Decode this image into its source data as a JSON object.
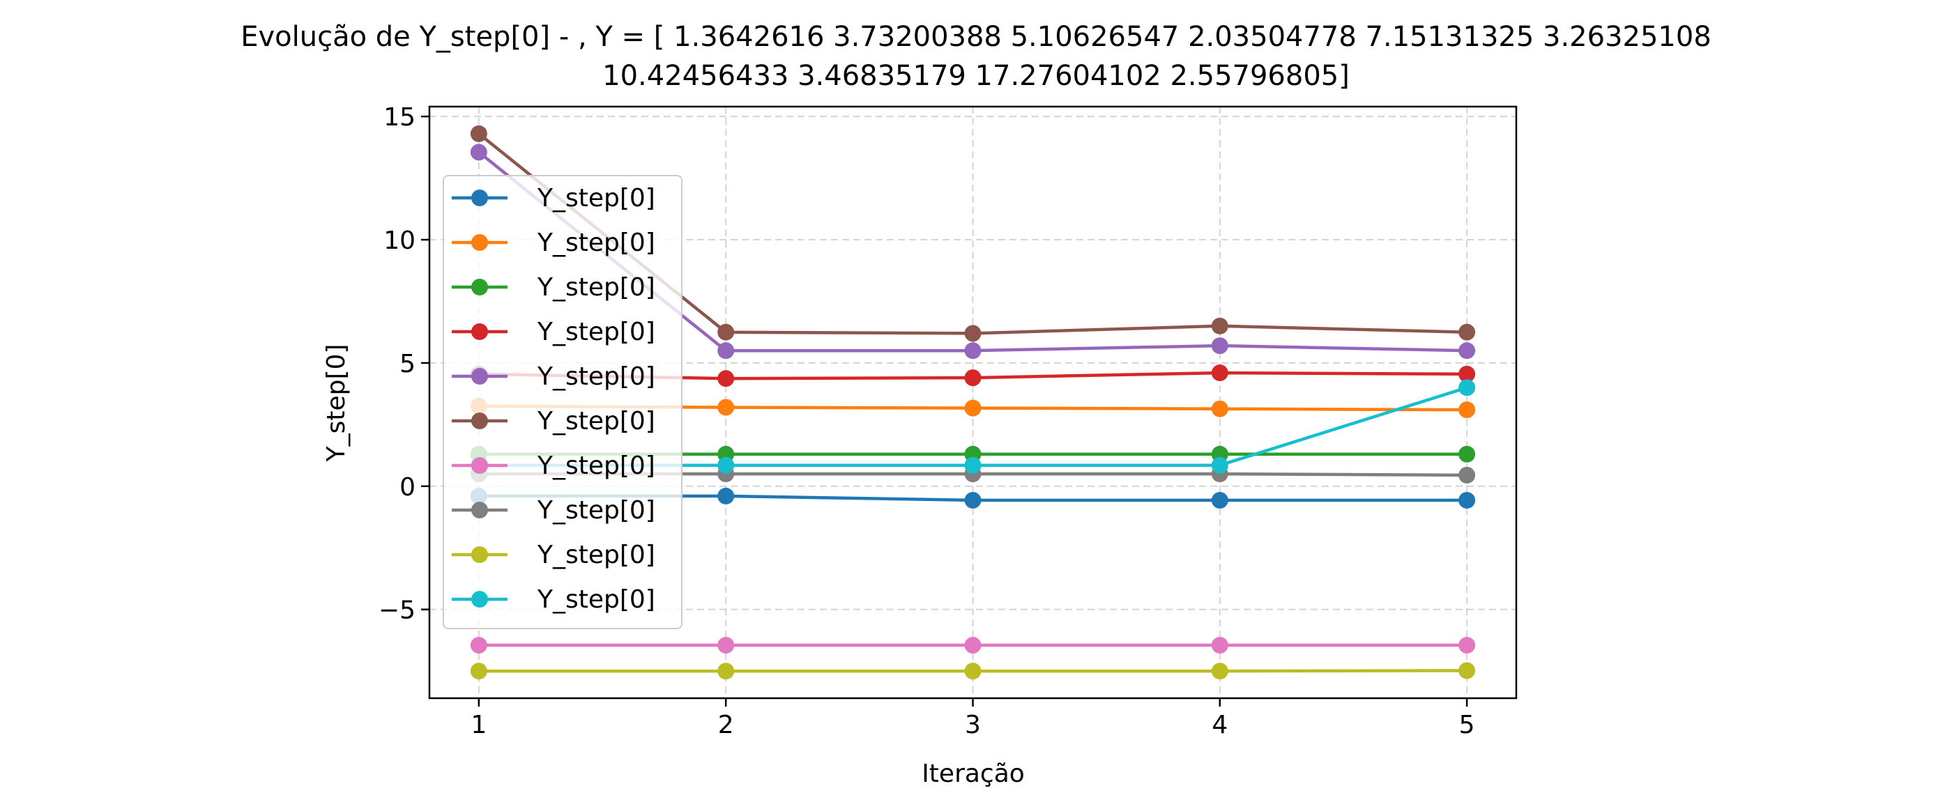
{
  "chart_data": {
    "type": "line",
    "title_line1": "Evolução de Y_step[0] - , Y = [ 1.3642616   3.73200388  5.10626547  2.03504778  7.15131325  3.26325108",
    "title_line2": "10.42456433  3.46835179 17.27604102  2.55796805]",
    "xlabel": "Iteração",
    "ylabel": "Y_step[0]",
    "xlim": [
      0.8,
      5.2
    ],
    "ylim": [
      -8.6,
      15.4
    ],
    "xticks": [
      1,
      2,
      3,
      4,
      5
    ],
    "yticks": [
      -5,
      0,
      5,
      10,
      15
    ],
    "ytick_labels": [
      "−5",
      "0",
      "5",
      "10",
      "15"
    ],
    "grid": true,
    "legend_position": "center-left",
    "x": [
      1,
      2,
      3,
      4,
      5
    ],
    "series": [
      {
        "name": "Y_step[0]",
        "color": "#1f77b4",
        "values": [
          -0.4,
          -0.4,
          -0.57,
          -0.57,
          -0.57
        ]
      },
      {
        "name": "Y_step[0]",
        "color": "#ff7f0e",
        "values": [
          3.25,
          3.2,
          3.17,
          3.14,
          3.1
        ]
      },
      {
        "name": "Y_step[0]",
        "color": "#2ca02c",
        "values": [
          1.3,
          1.3,
          1.3,
          1.3,
          1.3
        ]
      },
      {
        "name": "Y_step[0]",
        "color": "#d62728",
        "values": [
          4.55,
          4.37,
          4.4,
          4.6,
          4.55
        ]
      },
      {
        "name": "Y_step[0]",
        "color": "#9467bd",
        "values": [
          13.55,
          5.5,
          5.5,
          5.7,
          5.5
        ]
      },
      {
        "name": "Y_step[0]",
        "color": "#8c564b",
        "values": [
          14.3,
          6.25,
          6.2,
          6.5,
          6.25
        ]
      },
      {
        "name": "Y_step[0]",
        "color": "#e377c2",
        "values": [
          -6.45,
          -6.45,
          -6.45,
          -6.45,
          -6.45
        ]
      },
      {
        "name": "Y_step[0]",
        "color": "#7f7f7f",
        "values": [
          0.5,
          0.5,
          0.5,
          0.5,
          0.45
        ]
      },
      {
        "name": "Y_step[0]",
        "color": "#bcbd22",
        "values": [
          -7.5,
          -7.5,
          -7.5,
          -7.5,
          -7.48
        ]
      },
      {
        "name": "Y_step[0]",
        "color": "#17becf",
        "values": [
          0.85,
          0.85,
          0.85,
          0.85,
          4.0
        ]
      }
    ]
  }
}
